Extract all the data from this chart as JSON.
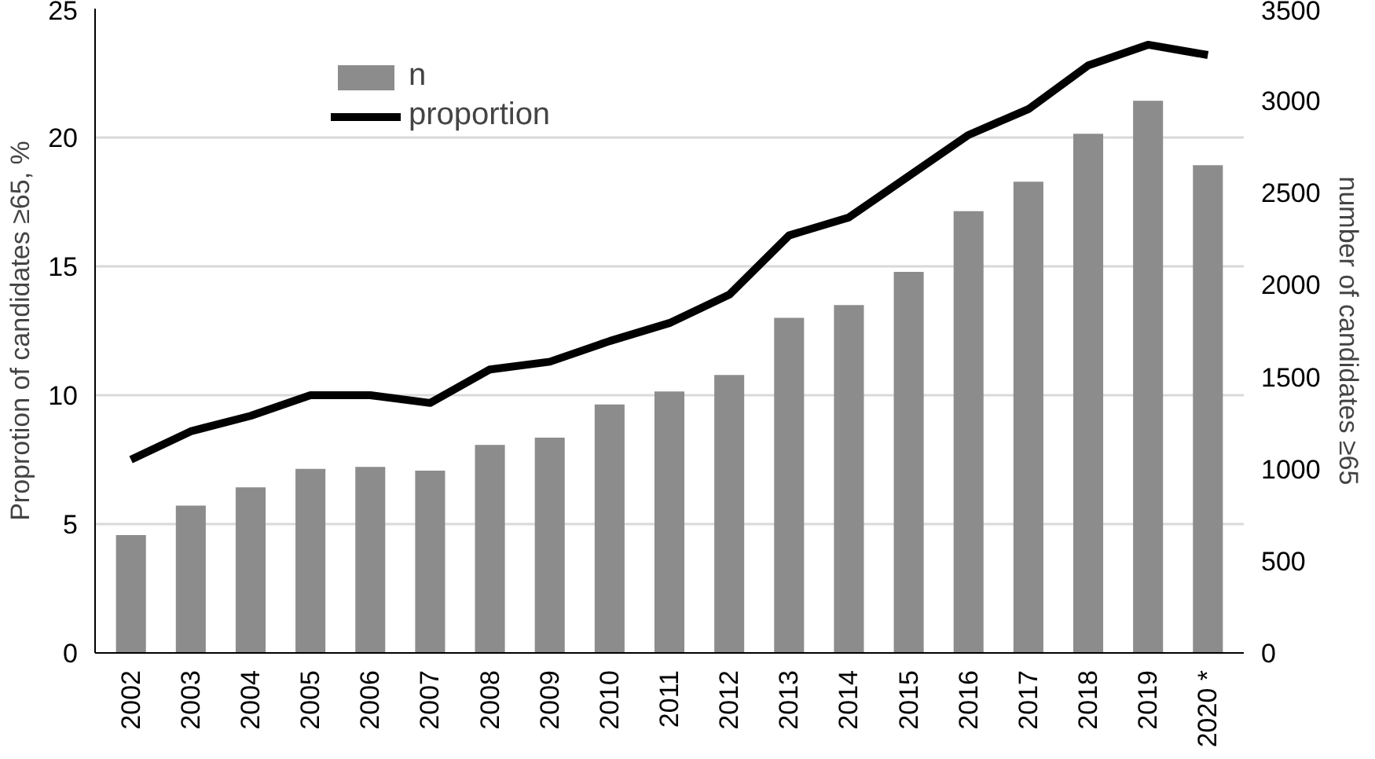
{
  "chart_data": {
    "type": "bar",
    "ylabel": "Proprotion of candidates ≥65, %",
    "y2label": "number of candidates ≥65",
    "categories": [
      "2002",
      "2003",
      "2004",
      "2005",
      "2006",
      "2007",
      "2008",
      "2009",
      "2010",
      "2011",
      "2012",
      "2013",
      "2014",
      "2015",
      "2016",
      "2017",
      "2018",
      "2019",
      "2020 *"
    ],
    "series": [
      {
        "name": "n",
        "axis": "y2",
        "color": "#8c8c8c",
        "values": [
          640,
          800,
          900,
          1000,
          1010,
          990,
          1130,
          1170,
          1350,
          1420,
          1510,
          1820,
          1890,
          2070,
          2400,
          2560,
          2820,
          3000,
          2650
        ]
      },
      {
        "name": "proportion",
        "type": "line",
        "color": "#000000",
        "values": [
          7.5,
          8.6,
          9.2,
          10.0,
          10.0,
          9.7,
          11.0,
          11.3,
          12.1,
          12.8,
          13.9,
          16.2,
          16.9,
          18.5,
          20.1,
          21.1,
          22.8,
          23.6,
          23.2
        ]
      }
    ],
    "ylim": [
      0,
      25
    ],
    "yticks": [
      0,
      5,
      10,
      15,
      20,
      25
    ],
    "y2lim": [
      0,
      3500
    ],
    "y2ticks": [
      0,
      500,
      1000,
      1500,
      2000,
      2500,
      3000,
      3500
    ],
    "grid": "y",
    "legend": "top left"
  }
}
